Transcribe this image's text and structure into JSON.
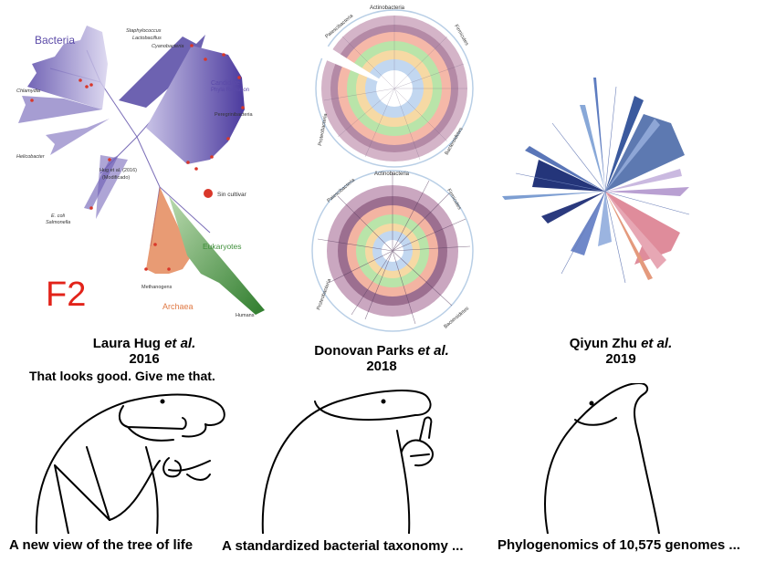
{
  "panels": [
    {
      "author_name": "Laura Hug",
      "author_etal": "et al.",
      "year": "2016",
      "caption": "A new view of the tree of life",
      "figure_labels": {
        "bacteria": "Bacteria",
        "staphylococcus": "Staphylococcus",
        "lactobacillus": "Lactobacillus",
        "cyanobacteria": "Cyanobacteria",
        "chlamydia": "Chlamydia",
        "candidate_line1": "Candidate",
        "candidate_line2": "Phyla Radiation",
        "peregrinibacteria": "Peregrinibacteria",
        "helicobacter": "Helicobacter",
        "hug_note_line1": "Hug et al. (2016)",
        "hug_note_line2": "(Modificado)",
        "uncultivated": "Sin cultivar",
        "ecoli": "E. coli",
        "salmonella": "Salmonella",
        "eukaryotes": "Eukaryotes",
        "methanogens": "Methanogens",
        "archaea": "Archaea",
        "humans": "Humans",
        "f2": "F2"
      }
    },
    {
      "author_name": "Donovan Parks",
      "author_etal": "et al.",
      "year": "2018",
      "caption": "A standardized bacterial taxonomy ...",
      "figure_labels": {
        "top_actinobacteria": "Actinobacteria",
        "top_patescibacteria": "Patescibacteria",
        "top_firmicutes": "Firmicutes",
        "top_proteobacteria": "Proteobacteria",
        "top_bacteroidetes": "Bacteroidetes",
        "bot_actinobacteria": "Actinobacteria",
        "bot_patescibacteria": "Patescibacteria",
        "bot_firmicutes": "Firmicutes",
        "bot_proteobacteria": "Proteobacteria",
        "bot_bacteroidetes": "Bacteroidetes"
      }
    },
    {
      "author_name": "Qiyun Zhu",
      "author_etal": "et al.",
      "year": "2019",
      "caption": "Phylogenomics of 10,575 genomes ..."
    }
  ],
  "speech": "That looks good. Give me that.",
  "colors": {
    "bacteria_purple": "#5b4aa8",
    "uncultivated_red": "#d9372a",
    "eukaryote_green": "#3f8f3a",
    "archaea_orange": "#e07a45",
    "f2_red": "#e2231a",
    "zhu_navy": "#2b3a7e",
    "zhu_pink": "#d9788a"
  }
}
